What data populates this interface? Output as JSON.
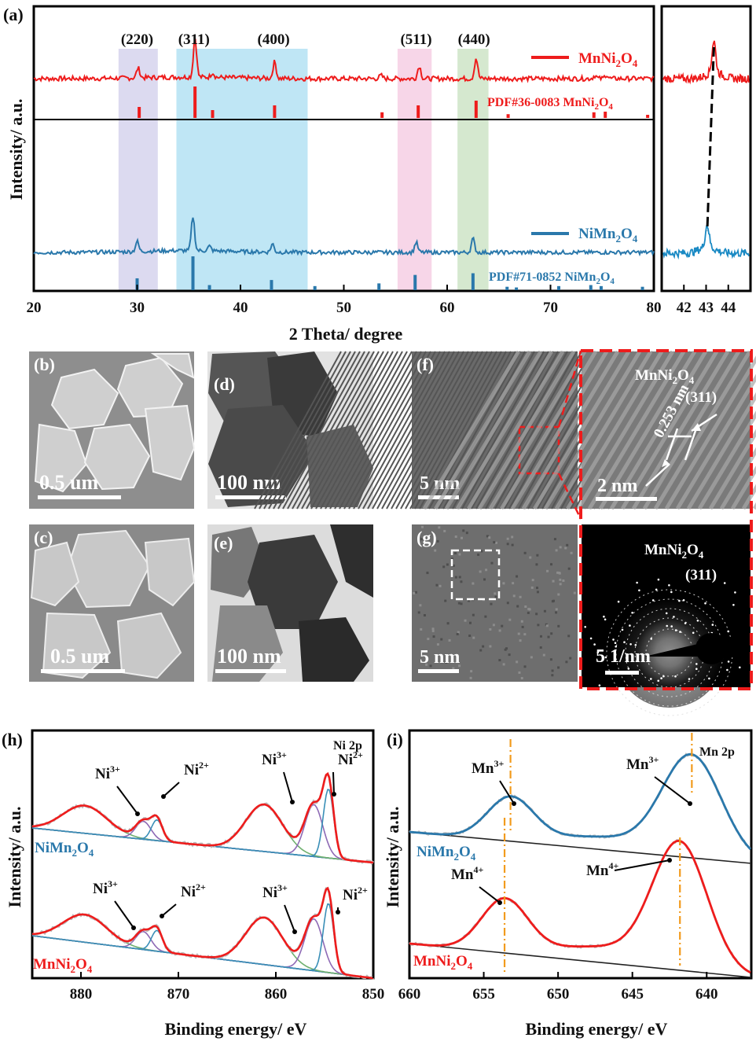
{
  "chart_data": [
    {
      "panel": "(a)",
      "type": "line",
      "title": "",
      "xlabel": "2 Theta/ degree",
      "ylabel": "Intensity/ a.u.",
      "xlim": [
        20,
        80
      ],
      "xticks": [
        "20",
        "30",
        "40",
        "50",
        "60",
        "70",
        "80"
      ],
      "planes": [
        {
          "label": "(220)",
          "x": 30.0,
          "band": [
            28.2,
            32.0
          ],
          "color": "#dcdaf0"
        },
        {
          "label": "(311)",
          "x": 35.5,
          "band": [
            33.8,
            46.5
          ],
          "color": "#bfe6f5"
        },
        {
          "label": "(400)",
          "x": 43.2,
          "band": null,
          "color": ""
        },
        {
          "label": "(511)",
          "x": 57.0,
          "band": [
            55.2,
            58.5
          ],
          "color": "#f7d6e8"
        },
        {
          "label": "(440)",
          "x": 62.6,
          "band": [
            61.0,
            64.0
          ],
          "color": "#d5e8cf"
        }
      ],
      "series": [
        {
          "name": "MnNi2O4",
          "color": "#ee1c1c",
          "legend": {
            "main": "MnNi",
            "s1": "2",
            "mid": "O",
            "s2": "4"
          },
          "peaks": [
            [
              30.1,
              0.25
            ],
            [
              35.6,
              1.0
            ],
            [
              37.3,
              0.12
            ],
            [
              43.3,
              0.42
            ],
            [
              53.6,
              0.08
            ],
            [
              57.3,
              0.32
            ],
            [
              62.8,
              0.52
            ],
            [
              74.3,
              0.08
            ],
            [
              75.4,
              0.1
            ]
          ],
          "reference": {
            "label": "PDF#36-0083 MnNi",
            "sub1": "2",
            "mid": "O",
            "sub2": "4",
            "sticks": [
              [
                30.2,
                0.35
              ],
              [
                35.6,
                1.0
              ],
              [
                37.3,
                0.25
              ],
              [
                43.3,
                0.4
              ],
              [
                53.7,
                0.18
              ],
              [
                57.2,
                0.4
              ],
              [
                62.8,
                0.55
              ],
              [
                65.9,
                0.12
              ],
              [
                74.2,
                0.18
              ],
              [
                75.3,
                0.2
              ],
              [
                79.4,
                0.1
              ]
            ]
          }
        },
        {
          "name": "NiMn2O4",
          "color": "#2a78ab",
          "legend": {
            "main": "NiMn",
            "s1": "2",
            "mid": "O",
            "s2": "4"
          },
          "peaks": [
            [
              30.0,
              0.22
            ],
            [
              35.4,
              0.75
            ],
            [
              37.0,
              0.1
            ],
            [
              43.1,
              0.18
            ],
            [
              57.0,
              0.22
            ],
            [
              62.5,
              0.3
            ]
          ],
          "reference": {
            "label": "PDF#71-0852 NiMn",
            "sub1": "2",
            "mid": "O",
            "sub2": "4",
            "sticks": [
              [
                30.0,
                0.35
              ],
              [
                35.4,
                1.0
              ],
              [
                37.0,
                0.15
              ],
              [
                43.0,
                0.3
              ],
              [
                47.2,
                0.12
              ],
              [
                53.4,
                0.2
              ],
              [
                56.9,
                0.45
              ],
              [
                62.5,
                0.5
              ],
              [
                65.8,
                0.1
              ],
              [
                66.7,
                0.08
              ],
              [
                70.8,
                0.12
              ],
              [
                73.9,
                0.15
              ],
              [
                74.9,
                0.12
              ],
              [
                78.9,
                0.1
              ]
            ]
          }
        }
      ],
      "inset": {
        "xlim": [
          41,
          45
        ],
        "xticks": [
          "42",
          "43",
          "44"
        ],
        "peak_top": 43.35,
        "peak_bottom": 43.05
      }
    },
    {
      "panel": "(h)",
      "type": "line",
      "title": "Ni 2p",
      "xlabel": "Binding energy/ eV",
      "ylabel": "Intensity/ a.u.",
      "xlim": [
        885,
        850
      ],
      "xticks": [
        "880",
        "870",
        "860",
        "850"
      ],
      "series_labels": [
        {
          "main": "NiMn",
          "s1": "2",
          "mid": "O",
          "s2": "4",
          "color": "#2a78ab"
        },
        {
          "main": "MnNi",
          "s1": "2",
          "mid": "O",
          "s2": "4",
          "color": "#ee1c1c"
        }
      ],
      "annotations": [
        {
          "ion": "Ni",
          "sup": "3+",
          "x": 873.6
        },
        {
          "ion": "Ni",
          "sup": "2+",
          "x": 872.2
        },
        {
          "ion": "Ni",
          "sup": "3+",
          "x": 856.1
        },
        {
          "ion": "Ni",
          "sup": "2+",
          "x": 854.6
        }
      ],
      "components": [
        {
          "center": 879.6,
          "width": 3.2,
          "amp": 0.4,
          "color": "#6fb06f"
        },
        {
          "center": 873.6,
          "width": 1.1,
          "amp": 0.26,
          "color": "#8e6ab5"
        },
        {
          "center": 872.2,
          "width": 0.8,
          "amp": 0.3,
          "color": "#3a8fb7"
        },
        {
          "center": 861.2,
          "width": 2.7,
          "amp": 0.68,
          "color": "#6fb06f"
        },
        {
          "center": 856.1,
          "width": 1.3,
          "amp": 0.75,
          "color": "#8e6ab5"
        },
        {
          "center": 854.6,
          "width": 0.75,
          "amp": 1.0,
          "color": "#3a8fb7"
        }
      ]
    },
    {
      "panel": "(i)",
      "type": "line",
      "title": "Mn 2p",
      "xlabel": "Binding energy/ eV",
      "ylabel": "Intensity/ a.u.",
      "xlim": [
        660,
        637
      ],
      "xticks": [
        "660",
        "655",
        "650",
        "645",
        "640"
      ],
      "series_labels": [
        {
          "main": "NiMn",
          "s1": "2",
          "mid": "O",
          "s2": "4",
          "color": "#2a78ab"
        },
        {
          "main": "MnNi",
          "s1": "2",
          "mid": "O",
          "s2": "4",
          "color": "#ee1c1c"
        }
      ],
      "annotations": [
        {
          "ion": "Mn",
          "sup": "3+",
          "x": 653.2,
          "series": "NiMn2O4"
        },
        {
          "ion": "Mn",
          "sup": "3+",
          "x": 641.0,
          "series": "NiMn2O4"
        },
        {
          "ion": "Mn",
          "sup": "4+",
          "x": 653.6,
          "series": "MnNi2O4"
        },
        {
          "ion": "Mn",
          "sup": "4+",
          "x": 641.8,
          "series": "MnNi2O4"
        }
      ],
      "peaks": {
        "NiMn2O4": [
          653.2,
          641.0
        ],
        "MnNi2O4": [
          653.6,
          641.8
        ]
      }
    }
  ],
  "micrographs": {
    "b": {
      "label": "(b)",
      "scale": "0.5 um"
    },
    "c": {
      "label": "(c)",
      "scale": "0.5 um"
    },
    "d": {
      "label": "(d)",
      "scale": "100 nm"
    },
    "e": {
      "label": "(e)",
      "scale": "100 nm"
    },
    "f": {
      "label": "(f)",
      "scale": "5 nm"
    },
    "f_zoom": {
      "scale": "2 nm",
      "spacing": "0.253 nm",
      "phase": "MnNi",
      "sub1": "2",
      "mid": "O",
      "sub2": "4",
      "plane": "(311)"
    },
    "g": {
      "label": "(g)",
      "scale": "5 nm"
    },
    "g_saed": {
      "scale": "5 1/nm",
      "phase": "MnNi",
      "sub1": "2",
      "mid": "O",
      "sub2": "4",
      "plane": "(311)"
    }
  },
  "colors": {
    "red": "#ee1c1c",
    "blue": "#2a78ab",
    "orange": "#f29b1d"
  }
}
